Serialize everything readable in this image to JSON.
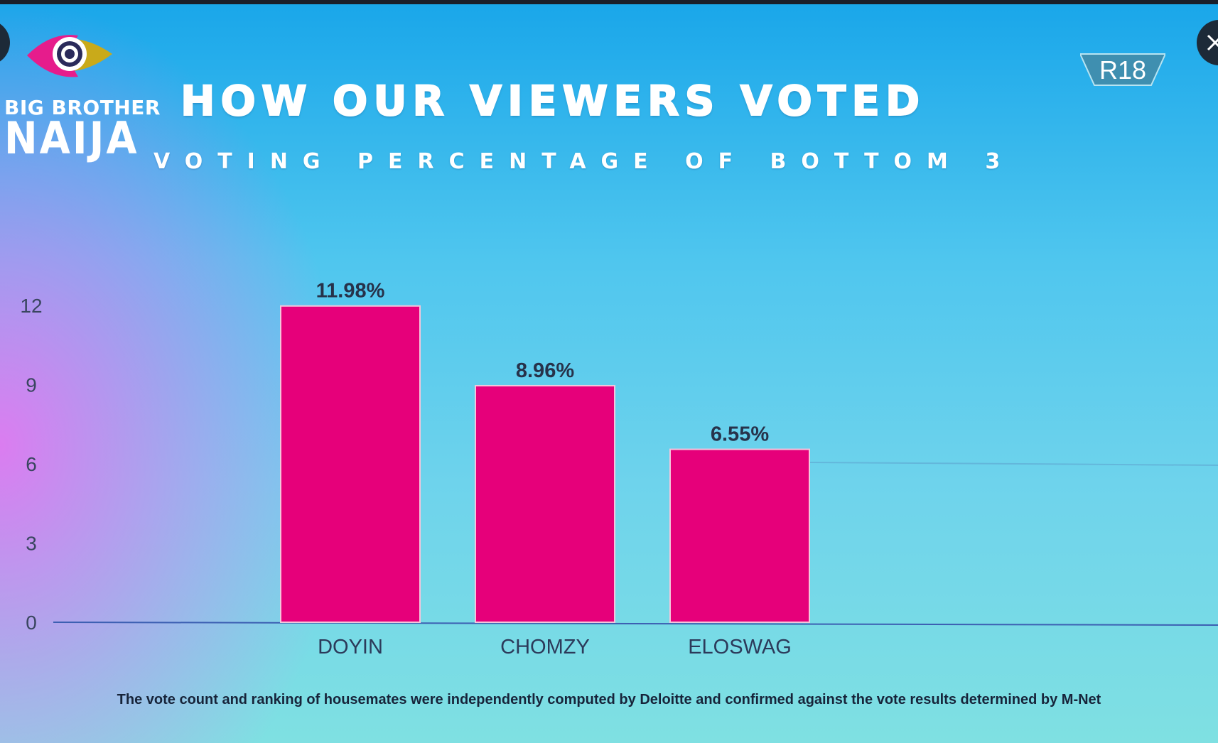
{
  "brand": {
    "line1": "BIG BROTHER",
    "line2": "NAIJA",
    "rating": "R18"
  },
  "chart_data": {
    "type": "bar",
    "title": "HOW OUR VIEWERS VOTED",
    "subtitle": "VOTING PERCENTAGE OF BOTTOM 3",
    "categories": [
      "DOYIN",
      "CHOMZY",
      "ELOSWAG"
    ],
    "values": [
      11.98,
      8.96,
      6.55
    ],
    "data_labels": [
      "11.98%",
      "8.96%",
      "6.55%"
    ],
    "yticks": [
      0,
      3,
      6,
      9,
      12
    ],
    "ylim": [
      0,
      12
    ],
    "xlabel": "",
    "ylabel": "",
    "bar_color": "#e6007a",
    "grid": false,
    "legend": "none"
  },
  "footnote": "The vote count and ranking of housemates were independently computed by Deloitte and confirmed against the vote results determined by M-Net",
  "colors": {
    "bar": "#e6007a",
    "axis": "#3c5fb2",
    "label_text": "#2c3a5a"
  }
}
